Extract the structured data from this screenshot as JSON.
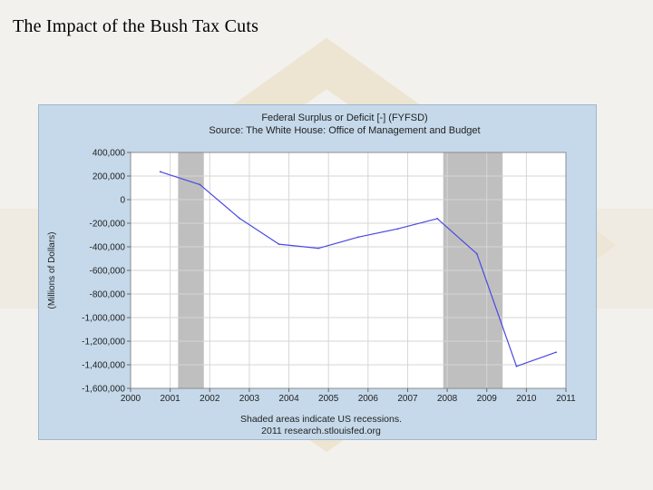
{
  "slide": {
    "title": "The Impact of the Bush Tax Cuts"
  },
  "colors": {
    "background": "#f3f1ee",
    "watermark": "#e9dcc0",
    "frame": "#c5d9ea",
    "plot_area": "#ffffff",
    "recession": "#bfbfbf",
    "line": "#4a4ae0"
  },
  "chart_data": {
    "type": "line",
    "title": "Federal Surplus or Deficit [-] (FYFSD)",
    "subtitle": "Source: The White House: Office of Management and Budget",
    "ylabel": "(Millions of Dollars)",
    "xlabel": "",
    "footer": [
      "Shaded areas indicate US recessions.",
      "2011 research.stlouisfed.org"
    ],
    "xlim": [
      2000,
      2011
    ],
    "ylim": [
      -1600000,
      400000
    ],
    "xticks": [
      2000,
      2001,
      2002,
      2003,
      2004,
      2005,
      2006,
      2007,
      2008,
      2009,
      2010,
      2011
    ],
    "yticks": [
      400000,
      200000,
      0,
      -200000,
      -400000,
      -600000,
      -800000,
      -1000000,
      -1200000,
      -1400000,
      -1600000
    ],
    "ytick_labels": [
      "400,000",
      "200,000",
      "0",
      "-200,000",
      "-400,000",
      "-600,000",
      "-800,000",
      "-1,000,000",
      "-1,200,000",
      "-1,400,000",
      "-1,600,000"
    ],
    "grid": true,
    "recessions": [
      {
        "start": 2001.2,
        "end": 2001.85
      },
      {
        "start": 2007.9,
        "end": 2009.4
      }
    ],
    "series": [
      {
        "x": [
          2000.75,
          2001.75,
          2002.75,
          2003.75,
          2004.75,
          2005.75,
          2006.75,
          2007.75,
          2008.75,
          2009.75,
          2010.75
        ],
        "values": [
          236000,
          128000,
          -158000,
          -378000,
          -412000,
          -318000,
          -248000,
          -161000,
          -459000,
          -1413000,
          -1294000
        ]
      }
    ]
  }
}
